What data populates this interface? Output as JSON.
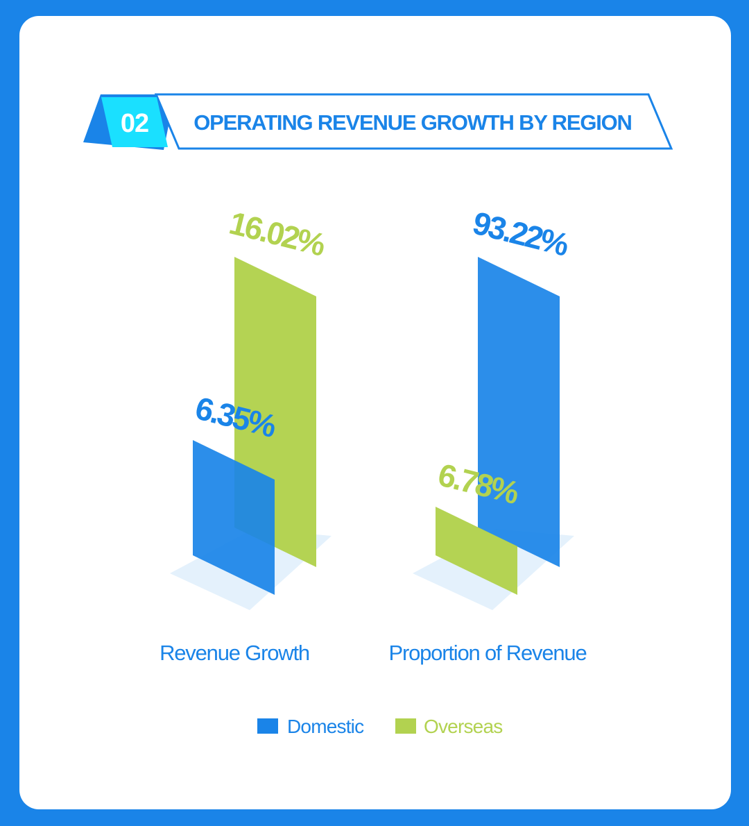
{
  "header": {
    "number": "02",
    "title": "OPERATING REVENUE GROWTH BY REGION"
  },
  "colors": {
    "background": "#1a84e8",
    "domestic": "#1a84e8",
    "overseas": "#b2d250",
    "badge": "#1ae0ff",
    "floor": "#e4f1fc"
  },
  "chart_data": {
    "type": "bar",
    "title": "OPERATING REVENUE GROWTH BY REGION",
    "categories": [
      "Revenue Growth",
      "Proportion of Revenue"
    ],
    "series": [
      {
        "name": "Domestic",
        "values": [
          6.35,
          93.22
        ]
      },
      {
        "name": "Overseas",
        "values": [
          16.02,
          6.78
        ]
      }
    ],
    "data_labels": {
      "Revenue Growth": {
        "Domestic": "6.35%",
        "Overseas": "16.02%"
      },
      "Proportion of Revenue": {
        "Domestic": "93.22%",
        "Overseas": "6.78%"
      }
    },
    "legend": {
      "position": "bottom-center",
      "entries": [
        "Domestic",
        "Overseas"
      ]
    },
    "grid": false
  }
}
